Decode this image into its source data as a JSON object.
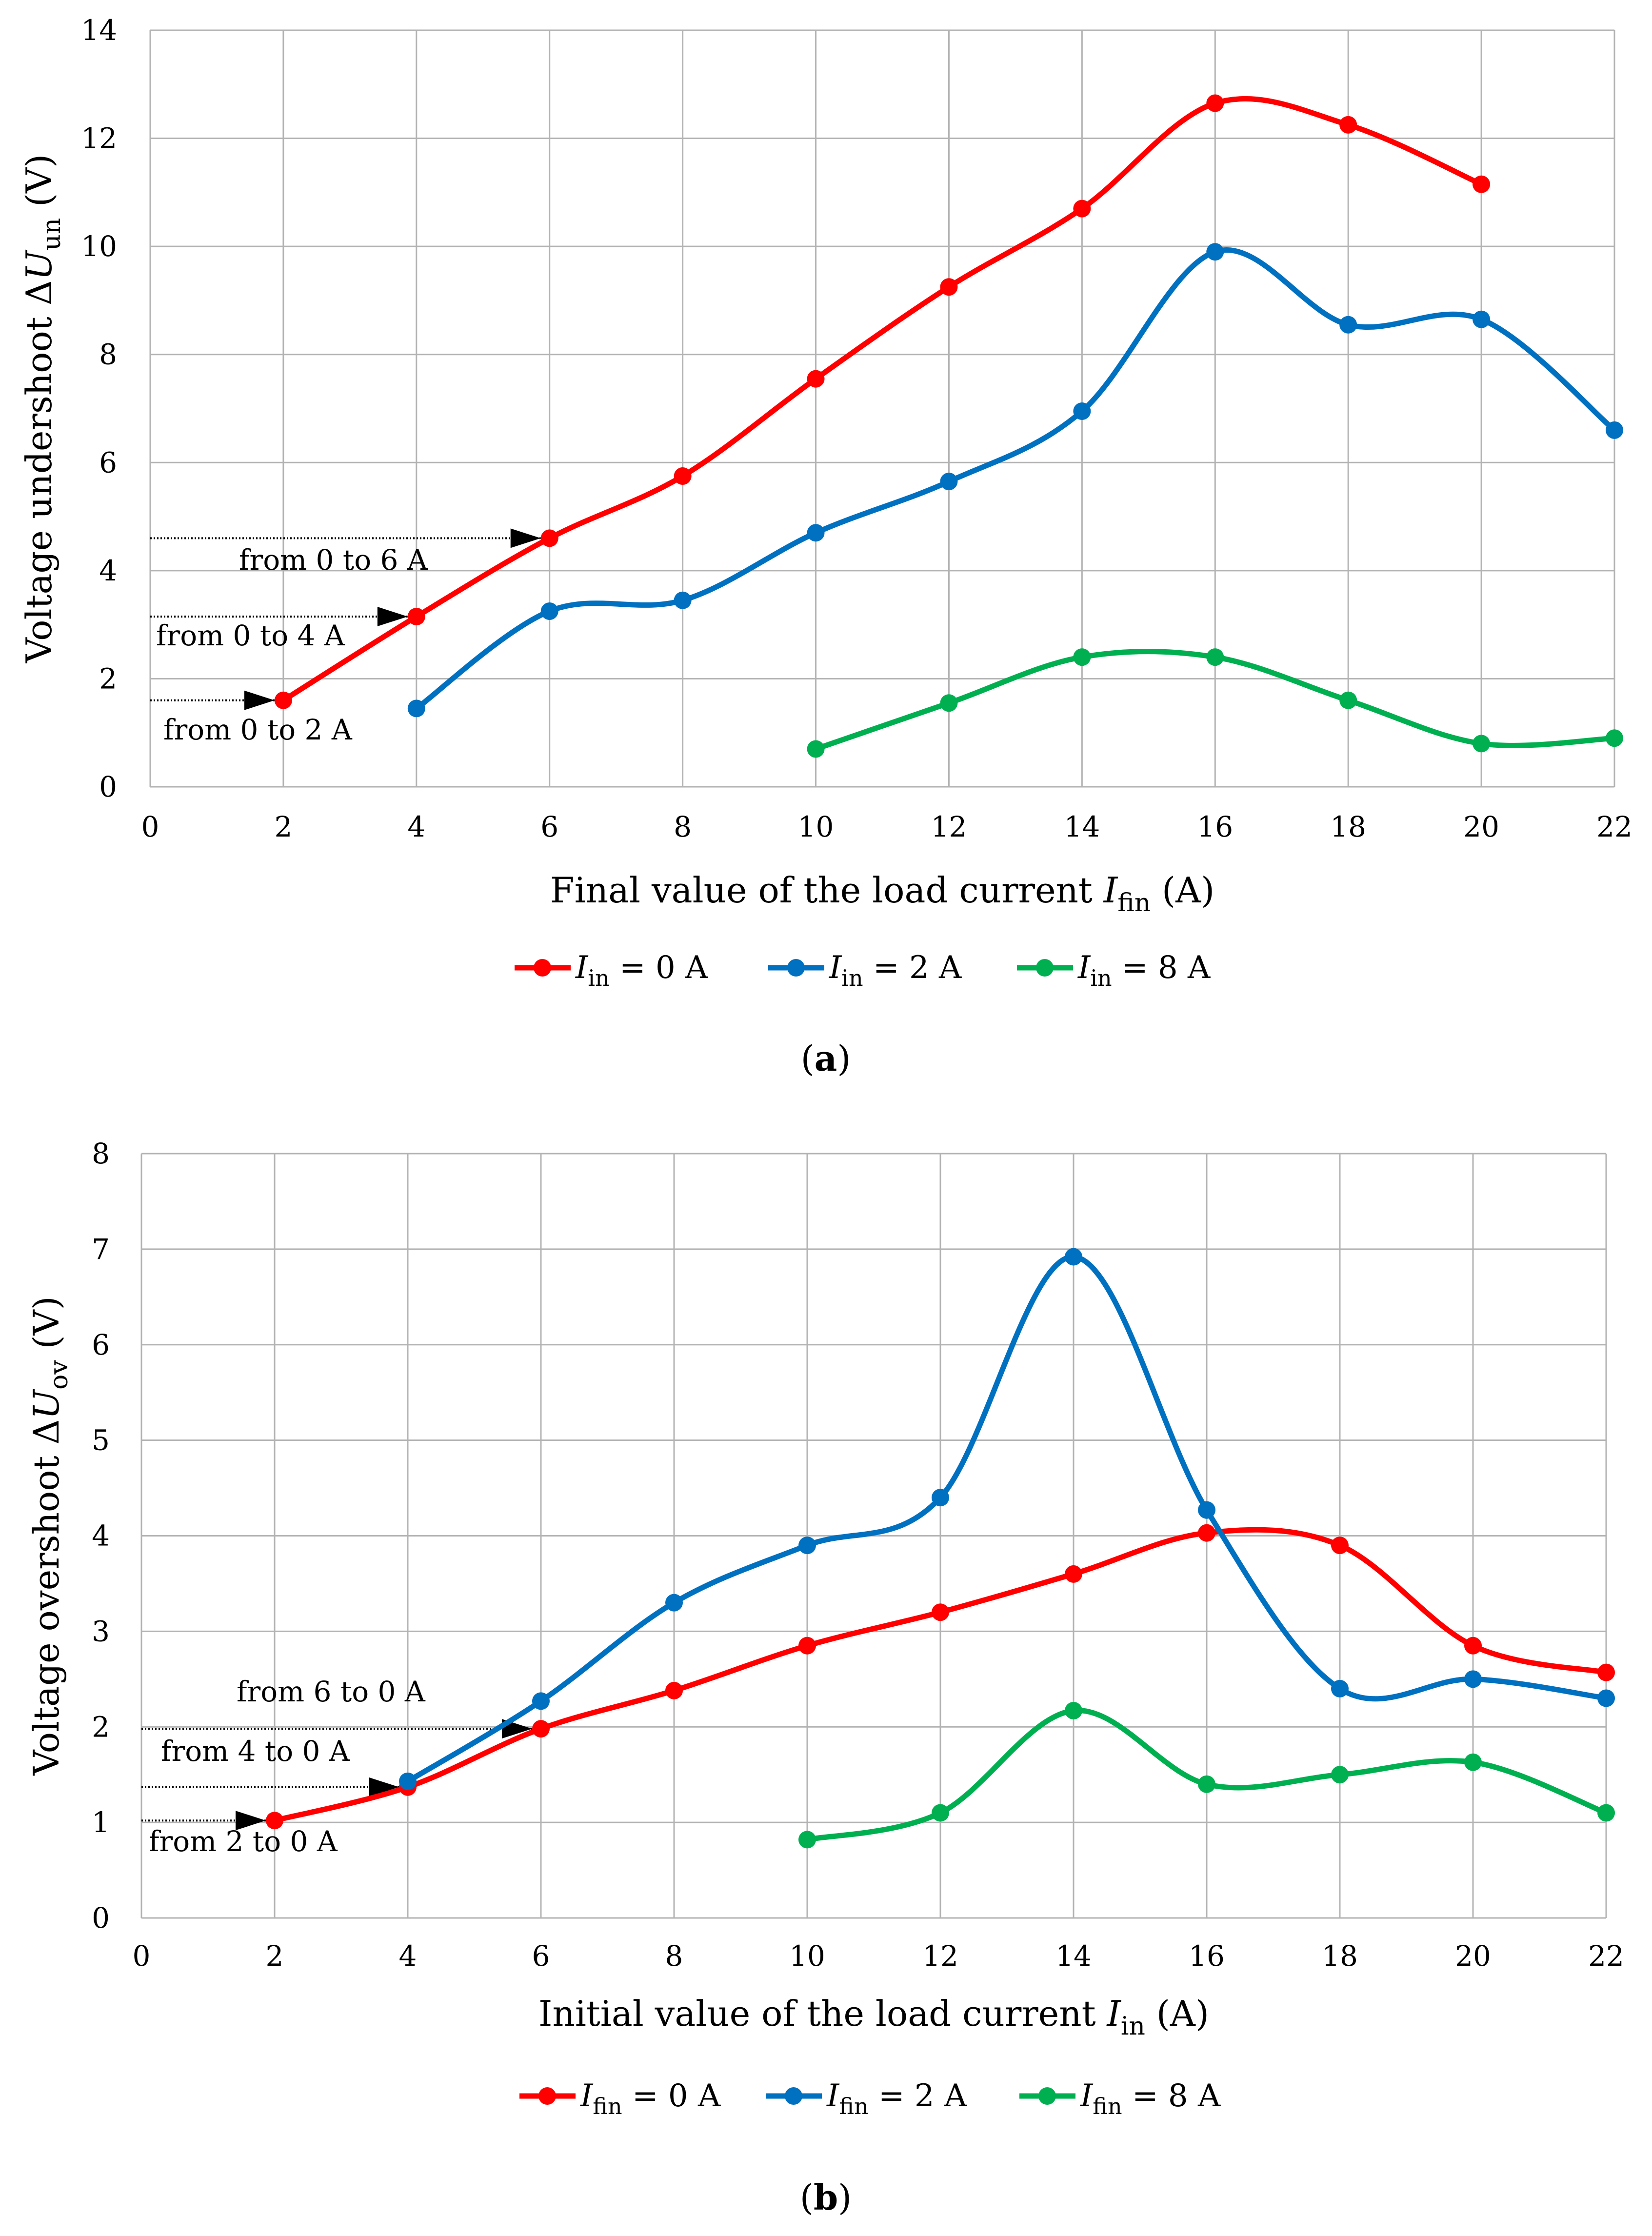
{
  "chart_data": [
    {
      "id": "a",
      "type": "line",
      "caption": "(a)",
      "caption_letter": "a",
      "xlabel": {
        "text": "Final value of the load current ",
        "sym": "I",
        "sub": "fin",
        "unit": " (A)"
      },
      "ylabel": {
        "text": "Voltage undershoot Δ",
        "sym": "U",
        "sub": "un",
        "unit": " (V)"
      },
      "xlim": [
        0,
        22
      ],
      "ylim": [
        0,
        14
      ],
      "xticks": [
        0,
        2,
        4,
        6,
        8,
        10,
        12,
        14,
        16,
        18,
        20,
        22
      ],
      "yticks": [
        0,
        2,
        4,
        6,
        8,
        10,
        12,
        14
      ],
      "grid": true,
      "legend_position": "bottom",
      "series": [
        {
          "name": "I_in = 0 A",
          "sym": "I",
          "sub": "in",
          "rest": " = 0 A",
          "color": "#ff0000",
          "x": [
            2,
            4,
            6,
            8,
            10,
            12,
            14,
            16,
            18,
            20
          ],
          "y": [
            1.6,
            3.15,
            4.6,
            5.75,
            7.55,
            9.25,
            10.7,
            12.65,
            12.25,
            11.15
          ]
        },
        {
          "name": "I_in = 2 A",
          "sym": "I",
          "sub": "in",
          "rest": " = 2 A",
          "color": "#0070c0",
          "x": [
            4,
            6,
            8,
            10,
            12,
            14,
            16,
            18,
            20,
            22
          ],
          "y": [
            1.45,
            3.25,
            3.45,
            4.7,
            5.65,
            6.95,
            9.9,
            8.55,
            8.65,
            6.6
          ]
        },
        {
          "name": "I_in = 8 A",
          "sym": "I",
          "sub": "in",
          "rest": " = 8 A",
          "color": "#00b050",
          "x": [
            10,
            12,
            14,
            16,
            18,
            20,
            22
          ],
          "y": [
            0.7,
            1.55,
            2.4,
            2.4,
            1.6,
            0.8,
            0.9
          ]
        }
      ],
      "annotations": [
        {
          "text": "from 0 to 6 A",
          "from_x": 0,
          "to_x": 6,
          "y": 4.6
        },
        {
          "text": "from 0 to 4 A",
          "from_x": 0,
          "to_x": 4,
          "y": 3.15
        },
        {
          "text": "from 0 to 2 A",
          "from_x": 0,
          "to_x": 2,
          "y": 1.6
        }
      ]
    },
    {
      "id": "b",
      "type": "line",
      "caption": "(b)",
      "caption_letter": "b",
      "xlabel": {
        "text": "Initial value of the load current ",
        "sym": "I",
        "sub": "in",
        "unit": " (A)"
      },
      "ylabel": {
        "text": "Voltage overshoot Δ",
        "sym": "U",
        "sub": "ov",
        "unit": " (V)"
      },
      "xlim": [
        0,
        22
      ],
      "ylim": [
        0,
        8
      ],
      "xticks": [
        0,
        2,
        4,
        6,
        8,
        10,
        12,
        14,
        16,
        18,
        20,
        22
      ],
      "yticks": [
        0,
        1,
        2,
        3,
        4,
        5,
        6,
        7,
        8
      ],
      "grid": true,
      "legend_position": "bottom",
      "series": [
        {
          "name": "I_fin = 0 A",
          "sym": "I",
          "sub": "fin",
          "rest": " = 0 A",
          "color": "#ff0000",
          "x": [
            2,
            4,
            6,
            8,
            10,
            12,
            14,
            16,
            18,
            20,
            22
          ],
          "y": [
            1.02,
            1.37,
            1.98,
            2.38,
            2.85,
            3.2,
            3.6,
            4.03,
            3.9,
            2.85,
            2.57
          ]
        },
        {
          "name": "I_fin = 2 A",
          "sym": "I",
          "sub": "fin",
          "rest": " = 2 A",
          "color": "#0070c0",
          "x": [
            4,
            6,
            8,
            10,
            12,
            14,
            16,
            18,
            20,
            22
          ],
          "y": [
            1.43,
            2.27,
            3.3,
            3.9,
            4.4,
            6.92,
            4.27,
            2.4,
            2.5,
            2.3
          ]
        },
        {
          "name": "I_fin = 8 A",
          "sym": "I",
          "sub": "fin",
          "rest": " = 8 A",
          "color": "#00b050",
          "x": [
            10,
            12,
            14,
            16,
            18,
            20,
            22
          ],
          "y": [
            0.82,
            1.1,
            2.17,
            1.4,
            1.5,
            1.63,
            1.1
          ]
        }
      ],
      "annotations": [
        {
          "text": "from 6 to 0 A",
          "from_x": 0,
          "to_x": 6,
          "y": 1.98
        },
        {
          "text": "from 4 to 0 A",
          "from_x": 0,
          "to_x": 4,
          "y": 1.37
        },
        {
          "text": "from 2 to 0 A",
          "from_x": 0,
          "to_x": 2,
          "y": 1.02
        }
      ]
    }
  ]
}
